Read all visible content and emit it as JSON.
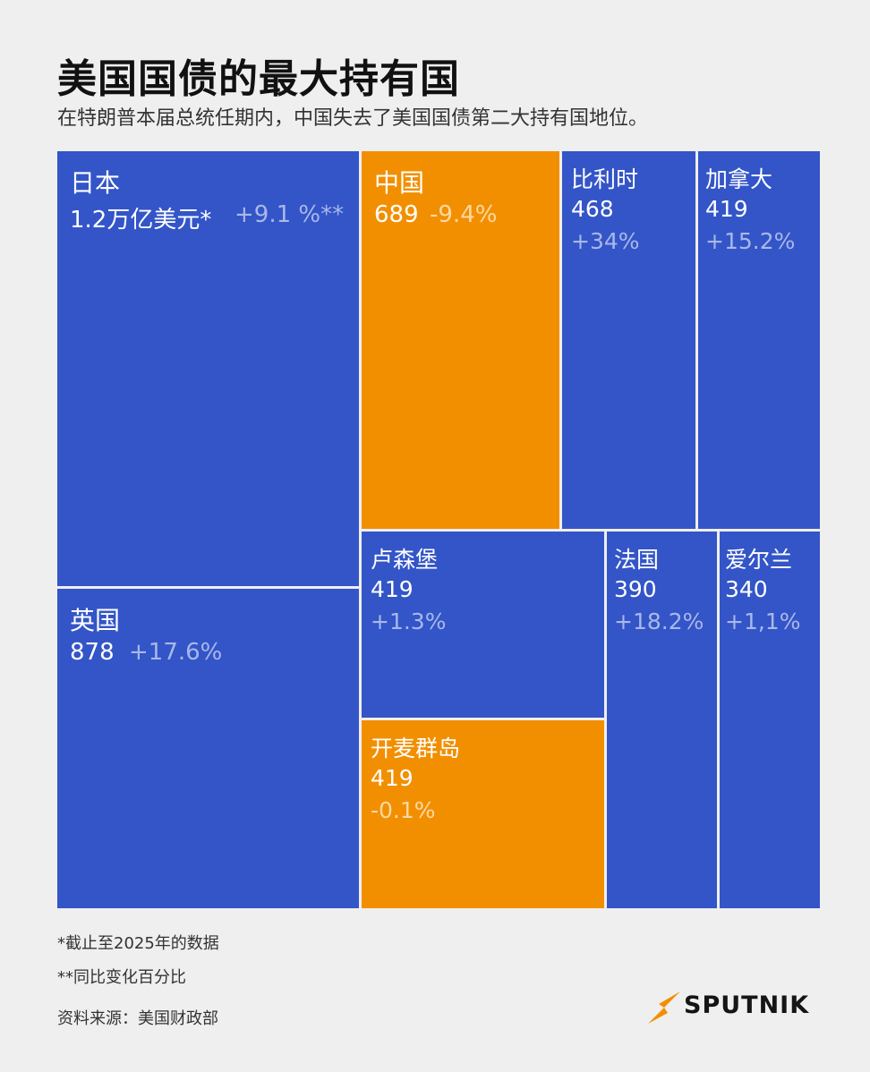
{
  "title": "美国国债的最大持有国",
  "subtitle": "在特朗普本届总统任期内，中国失去了美国国债第二大持有国地位。",
  "colors": {
    "blue": "#3355c8",
    "orange": "#f28f00",
    "background": "#efefef",
    "change_blue": "#a9b8e8",
    "change_orange": "#fbd9a2"
  },
  "chart_data": {
    "type": "treemap",
    "unit_note": "*截止至2025年的数据",
    "change_note": "**同比变化百分比",
    "items": [
      {
        "name": "日本",
        "value": 1200,
        "value_label": "1.2万亿美元*",
        "change": "+9.1 %**",
        "color": "blue"
      },
      {
        "name": "英国",
        "value": 878,
        "value_label": "878",
        "change": "+17.6%",
        "color": "blue"
      },
      {
        "name": "中国",
        "value": 689,
        "value_label": "689",
        "change": "-9.4%",
        "color": "orange"
      },
      {
        "name": "比利时",
        "value": 468,
        "value_label": "468",
        "change": "+34%",
        "color": "blue"
      },
      {
        "name": "加拿大",
        "value": 419,
        "value_label": "419",
        "change": "+15.2%",
        "color": "blue"
      },
      {
        "name": "卢森堡",
        "value": 419,
        "value_label": "419",
        "change": "+1.3%",
        "color": "blue"
      },
      {
        "name": "法国",
        "value": 390,
        "value_label": "390",
        "change": "+18.2%",
        "color": "blue"
      },
      {
        "name": "爱尔兰",
        "value": 340,
        "value_label": "340",
        "change": "+1,1%",
        "color": "blue"
      },
      {
        "name": "开麦群岛",
        "value": 419,
        "value_label": "419",
        "change": "-0.1%",
        "color": "orange"
      }
    ]
  },
  "footnotes": [
    "*截止至2025年的数据",
    "**同比变化百分比"
  ],
  "source": "资料来源：美国财政部",
  "logo": {
    "text": "SPUTNIK",
    "icon": "sputnik-arrow-icon"
  }
}
